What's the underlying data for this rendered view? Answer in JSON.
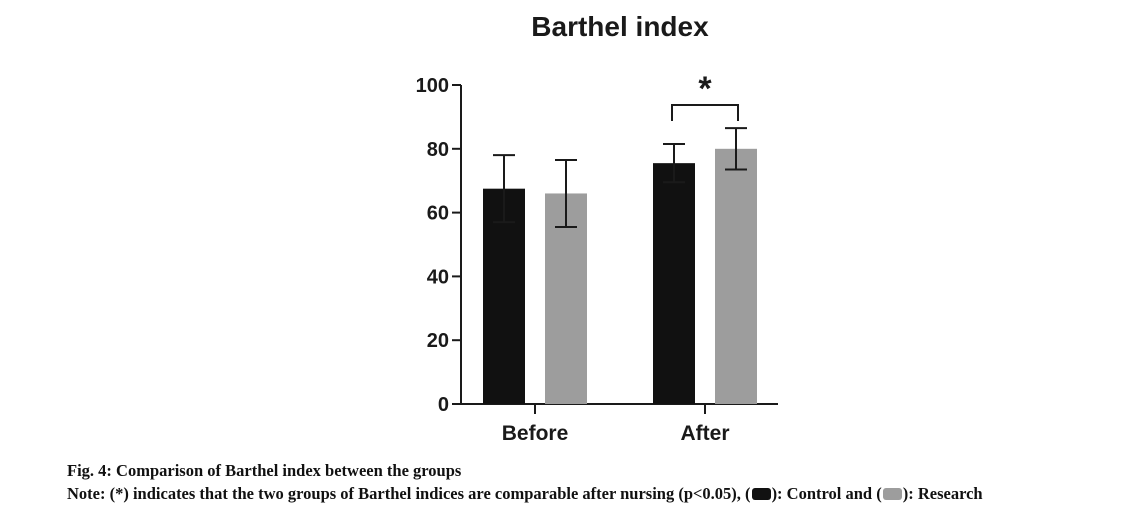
{
  "chart_data": {
    "type": "bar",
    "title": "Barthel index",
    "categories": [
      "Before",
      "After"
    ],
    "series": [
      {
        "values": [
          67.5,
          75.5
        ],
        "errors": [
          10.5,
          6.0
        ],
        "color": "#111111"
      },
      {
        "values": [
          66.0,
          80.0
        ],
        "errors": [
          10.5,
          6.5
        ],
        "color": "#9d9d9d"
      }
    ],
    "ylim": [
      0,
      100
    ],
    "yticks": [
      0,
      20,
      40,
      60,
      80,
      100
    ],
    "xlabel": "",
    "ylabel": "",
    "grid": false,
    "significance": {
      "category": "After",
      "label": "*"
    }
  },
  "caption": {
    "title": "Fig. 4: Comparison of Barthel index between the groups",
    "note_prefix": "Note: (*) indicates that the two groups of Barthel indices are comparable after nursing (p<0.05), (",
    "control_label": "): Control and (",
    "research_label": "): Research",
    "control_color": "#111111",
    "research_color": "#9d9d9d"
  }
}
